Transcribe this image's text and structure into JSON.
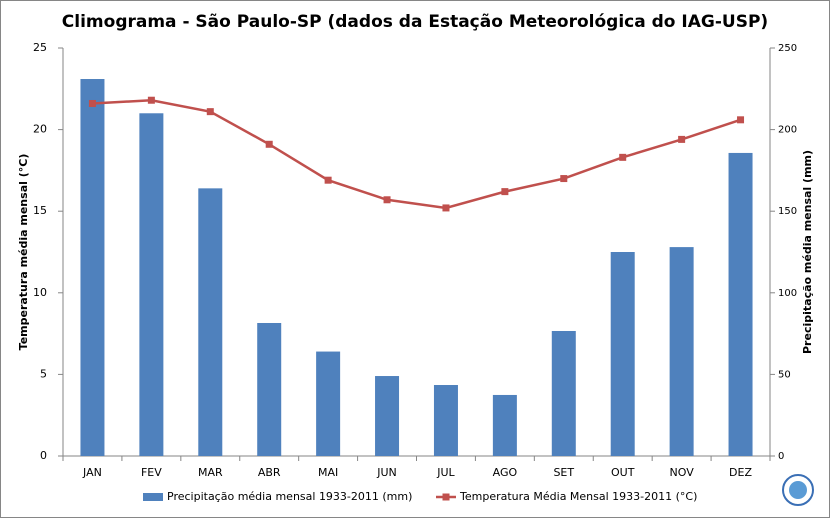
{
  "chart_data": {
    "type": "combo",
    "title": "Climograma - São Paulo-SP (dados da Estação Meteorológica do IAG-USP)",
    "y_label": "Temperatura média mensal (°C)",
    "y2_label": "Precipitação média mensal (mm)",
    "categories": [
      "JAN",
      "FEV",
      "MAR",
      "ABR",
      "MAI",
      "JUN",
      "JUL",
      "AGO",
      "SET",
      "OUT",
      "NOV",
      "DEZ"
    ],
    "series": [
      {
        "name": "Precipitação média mensal 1933-2011 (mm)",
        "kind": "bar",
        "axis": "y2",
        "color": "#4f81bd",
        "values": [
          231,
          210,
          164,
          81.5,
          64,
          49,
          43.5,
          37.4,
          76.6,
          125,
          128,
          185.7
        ]
      },
      {
        "name": "Temperatura Média Mensal 1933-2011 (°C)",
        "kind": "line",
        "axis": "y",
        "color": "#c0504d",
        "values": [
          21.6,
          21.8,
          21.1,
          19.1,
          16.9,
          15.7,
          15.2,
          16.2,
          17.0,
          18.3,
          19.4,
          20.6
        ]
      }
    ],
    "ylim": [
      0,
      25
    ],
    "yticks": [
      0,
      5,
      10,
      15,
      20,
      25
    ],
    "y2lim": [
      0,
      250
    ],
    "y2ticks": [
      0,
      50,
      100,
      150,
      200,
      250
    ],
    "grid": false,
    "legend": "bottom"
  }
}
